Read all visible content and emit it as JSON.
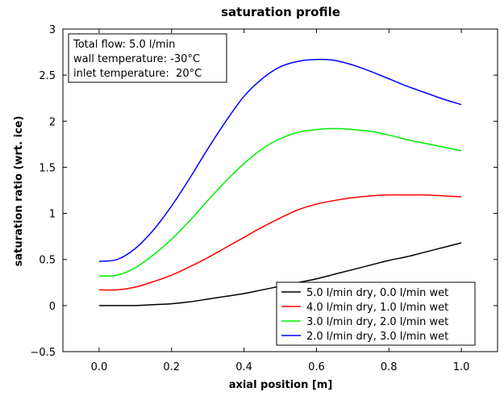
{
  "chart_data": {
    "type": "line",
    "title": "saturation profile",
    "xlabel": "axial position [m]",
    "ylabel": "saturation ratio (wrt. ice)",
    "xlim": [
      -0.1,
      1.1
    ],
    "ylim": [
      -0.5,
      3.0
    ],
    "xticks": [
      0.0,
      0.2,
      0.4,
      0.6,
      0.8,
      1.0
    ],
    "xtick_labels": [
      "0.0",
      "0.2",
      "0.4",
      "0.6",
      "0.8",
      "1.0"
    ],
    "yticks": [
      -0.5,
      0,
      0.5,
      1,
      1.5,
      2,
      2.5,
      3
    ],
    "ytick_labels": [
      "−0.5",
      "0",
      "0.5",
      "1",
      "1.5",
      "2",
      "2.5",
      "3"
    ],
    "grid": false,
    "annotation": [
      "Total flow: 5.0 l/min",
      "wall temperature: -30°C",
      "inlet temperature:  20°C"
    ],
    "legend_position": "bottom-right",
    "x": [
      0.0,
      0.05,
      0.1,
      0.15,
      0.2,
      0.25,
      0.3,
      0.35,
      0.4,
      0.45,
      0.5,
      0.55,
      0.6,
      0.65,
      0.7,
      0.75,
      0.8,
      0.85,
      0.9,
      0.95,
      1.0
    ],
    "series": [
      {
        "name": "5.0 l/min dry, 0.0 l/min wet",
        "color": "#000000",
        "values": [
          0.0,
          0.0,
          0.0,
          0.01,
          0.02,
          0.04,
          0.07,
          0.1,
          0.13,
          0.17,
          0.21,
          0.25,
          0.29,
          0.34,
          0.39,
          0.44,
          0.49,
          0.53,
          0.58,
          0.63,
          0.68
        ]
      },
      {
        "name": "4.0 l/min dry, 1.0 l/min wet",
        "color": "#ff0000",
        "values": [
          0.17,
          0.17,
          0.2,
          0.26,
          0.33,
          0.42,
          0.52,
          0.63,
          0.74,
          0.85,
          0.95,
          1.04,
          1.1,
          1.14,
          1.17,
          1.19,
          1.2,
          1.2,
          1.2,
          1.19,
          1.18
        ]
      },
      {
        "name": "3.0 l/min dry, 2.0 l/min wet",
        "color": "#00ee00",
        "values": [
          0.32,
          0.33,
          0.41,
          0.55,
          0.72,
          0.92,
          1.14,
          1.35,
          1.54,
          1.7,
          1.81,
          1.88,
          1.91,
          1.92,
          1.91,
          1.89,
          1.85,
          1.8,
          1.76,
          1.72,
          1.68
        ]
      },
      {
        "name": "2.0 l/min dry, 3.0 l/min wet",
        "color": "#0000ff",
        "values": [
          0.48,
          0.5,
          0.62,
          0.82,
          1.08,
          1.38,
          1.7,
          2.0,
          2.27,
          2.46,
          2.59,
          2.65,
          2.67,
          2.66,
          2.61,
          2.54,
          2.46,
          2.38,
          2.31,
          2.24,
          2.18
        ]
      }
    ]
  }
}
